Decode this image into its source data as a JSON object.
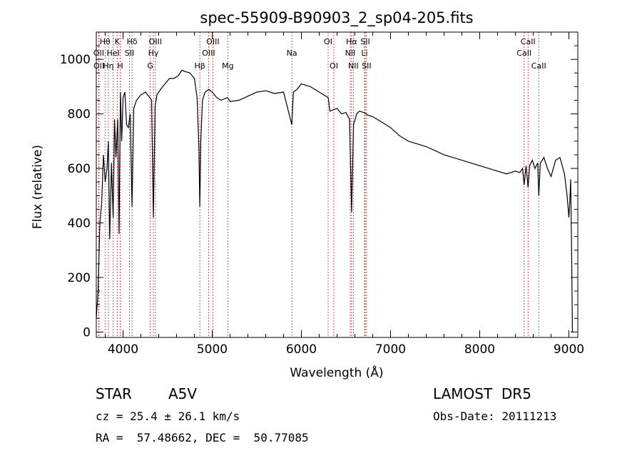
{
  "chart_data": {
    "type": "line",
    "title": "spec-55909-B90903_2_sp04-205.fits",
    "xlabel": "Wavelength (Å)",
    "ylabel": "Flux (relative)",
    "xlim": [
      3700,
      9100
    ],
    "ylim": [
      -20,
      1100
    ],
    "xticks": [
      4000,
      5000,
      6000,
      7000,
      8000,
      9000
    ],
    "yticks": [
      0,
      200,
      400,
      600,
      800,
      1000
    ],
    "grid": false,
    "series": [
      {
        "x": [
          3700,
          3720,
          3740,
          3760,
          3780,
          3800,
          3820,
          3835,
          3850,
          3870,
          3889,
          3905,
          3920,
          3940,
          3955,
          3970,
          3985,
          4000,
          4020,
          4040,
          4060,
          4080,
          4101,
          4120,
          4150,
          4200,
          4250,
          4300,
          4320,
          4340,
          4360,
          4380,
          4420,
          4470,
          4520,
          4570,
          4620,
          4660,
          4700,
          4750,
          4800,
          4830,
          4850,
          4861,
          4872,
          4890,
          4920,
          4960,
          5000,
          5050,
          5100,
          5170,
          5200,
          5300,
          5400,
          5500,
          5600,
          5700,
          5800,
          5893,
          5910,
          5950,
          6000,
          6100,
          6200,
          6300,
          6320,
          6400,
          6450,
          6500,
          6540,
          6563,
          6585,
          6620,
          6650,
          6700,
          6750,
          6800,
          6900,
          7000,
          7100,
          7200,
          7300,
          7400,
          7500,
          7600,
          7700,
          7800,
          7900,
          8000,
          8100,
          8200,
          8300,
          8400,
          8450,
          8480,
          8498,
          8520,
          8542,
          8560,
          8590,
          8620,
          8650,
          8662,
          8680,
          8720,
          8760,
          8800,
          8850,
          8900,
          8950,
          8980,
          9000,
          9010,
          9020,
          9030,
          9040
        ],
        "values": [
          50,
          150,
          400,
          470,
          650,
          550,
          600,
          700,
          340,
          620,
          420,
          780,
          640,
          780,
          360,
          880,
          700,
          860,
          880,
          760,
          750,
          800,
          460,
          820,
          850,
          870,
          880,
          860,
          850,
          420,
          830,
          870,
          890,
          910,
          930,
          930,
          940,
          960,
          955,
          950,
          930,
          860,
          680,
          460,
          700,
          850,
          880,
          890,
          880,
          860,
          850,
          860,
          845,
          850,
          865,
          880,
          885,
          875,
          880,
          760,
          880,
          890,
          910,
          900,
          880,
          860,
          810,
          820,
          800,
          805,
          780,
          440,
          760,
          800,
          810,
          805,
          795,
          790,
          770,
          750,
          720,
          700,
          690,
          680,
          665,
          650,
          640,
          630,
          620,
          610,
          600,
          590,
          580,
          590,
          585,
          600,
          540,
          610,
          530,
          610,
          630,
          600,
          620,
          500,
          620,
          640,
          600,
          570,
          630,
          640,
          580,
          500,
          420,
          480,
          560,
          300,
          0
        ]
      }
    ],
    "spectral_lines": [
      {
        "label": "Hθ",
        "wavelength": 3798,
        "row": 1
      },
      {
        "label": "OII",
        "wavelength": 3727,
        "row": 2
      },
      {
        "label": "OII",
        "wavelength": 3729,
        "row": 3
      },
      {
        "label": "Hη",
        "wavelength": 3835,
        "row": 3
      },
      {
        "label": "K",
        "wavelength": 3934,
        "row": 1
      },
      {
        "label": "HeI",
        "wavelength": 3889,
        "row": 2
      },
      {
        "label": "H",
        "wavelength": 3968,
        "row": 3
      },
      {
        "label": "Hδ",
        "wavelength": 4101,
        "row": 1
      },
      {
        "label": "SII",
        "wavelength": 4072,
        "row": 2
      },
      {
        "label": "OIII",
        "wavelength": 4363,
        "row": 1
      },
      {
        "label": "Hγ",
        "wavelength": 4340,
        "row": 2
      },
      {
        "label": "G",
        "wavelength": 4304,
        "row": 3
      },
      {
        "label": "Hβ",
        "wavelength": 4861,
        "row": 3
      },
      {
        "label": "OIII",
        "wavelength": 5007,
        "row": 1
      },
      {
        "label": "OIII",
        "wavelength": 4959,
        "row": 2
      },
      {
        "label": "Mg",
        "wavelength": 5175,
        "row": 3
      },
      {
        "label": "Na",
        "wavelength": 5893,
        "row": 2
      },
      {
        "label": "OI",
        "wavelength": 6300,
        "row": 1
      },
      {
        "label": "OI",
        "wavelength": 6364,
        "row": 3
      },
      {
        "label": "Hα",
        "wavelength": 6563,
        "row": 1
      },
      {
        "label": "NII",
        "wavelength": 6548,
        "row": 2
      },
      {
        "label": "NII",
        "wavelength": 6583,
        "row": 3
      },
      {
        "label": "SII",
        "wavelength": 6716,
        "row": 1
      },
      {
        "label": "Li",
        "wavelength": 6708,
        "row": 2
      },
      {
        "label": "SII",
        "wavelength": 6731,
        "row": 3
      },
      {
        "label": "CaII",
        "wavelength": 8542,
        "row": 1
      },
      {
        "label": "CaII",
        "wavelength": 8498,
        "row": 2
      },
      {
        "label": "CaII",
        "wavelength": 8662,
        "row": 3
      }
    ]
  },
  "info": {
    "object_class": "STAR",
    "subclass": "A5V",
    "survey": "LAMOST  DR5",
    "redshift": "cz = 25.4 ± 26.1 km/s",
    "obs_date": "Obs-Date: 20111213",
    "coords": "RA =  57.48662, DEC =  50.77085"
  },
  "colors": {
    "spectrum": "#000000",
    "line_marker": "#b03030"
  }
}
